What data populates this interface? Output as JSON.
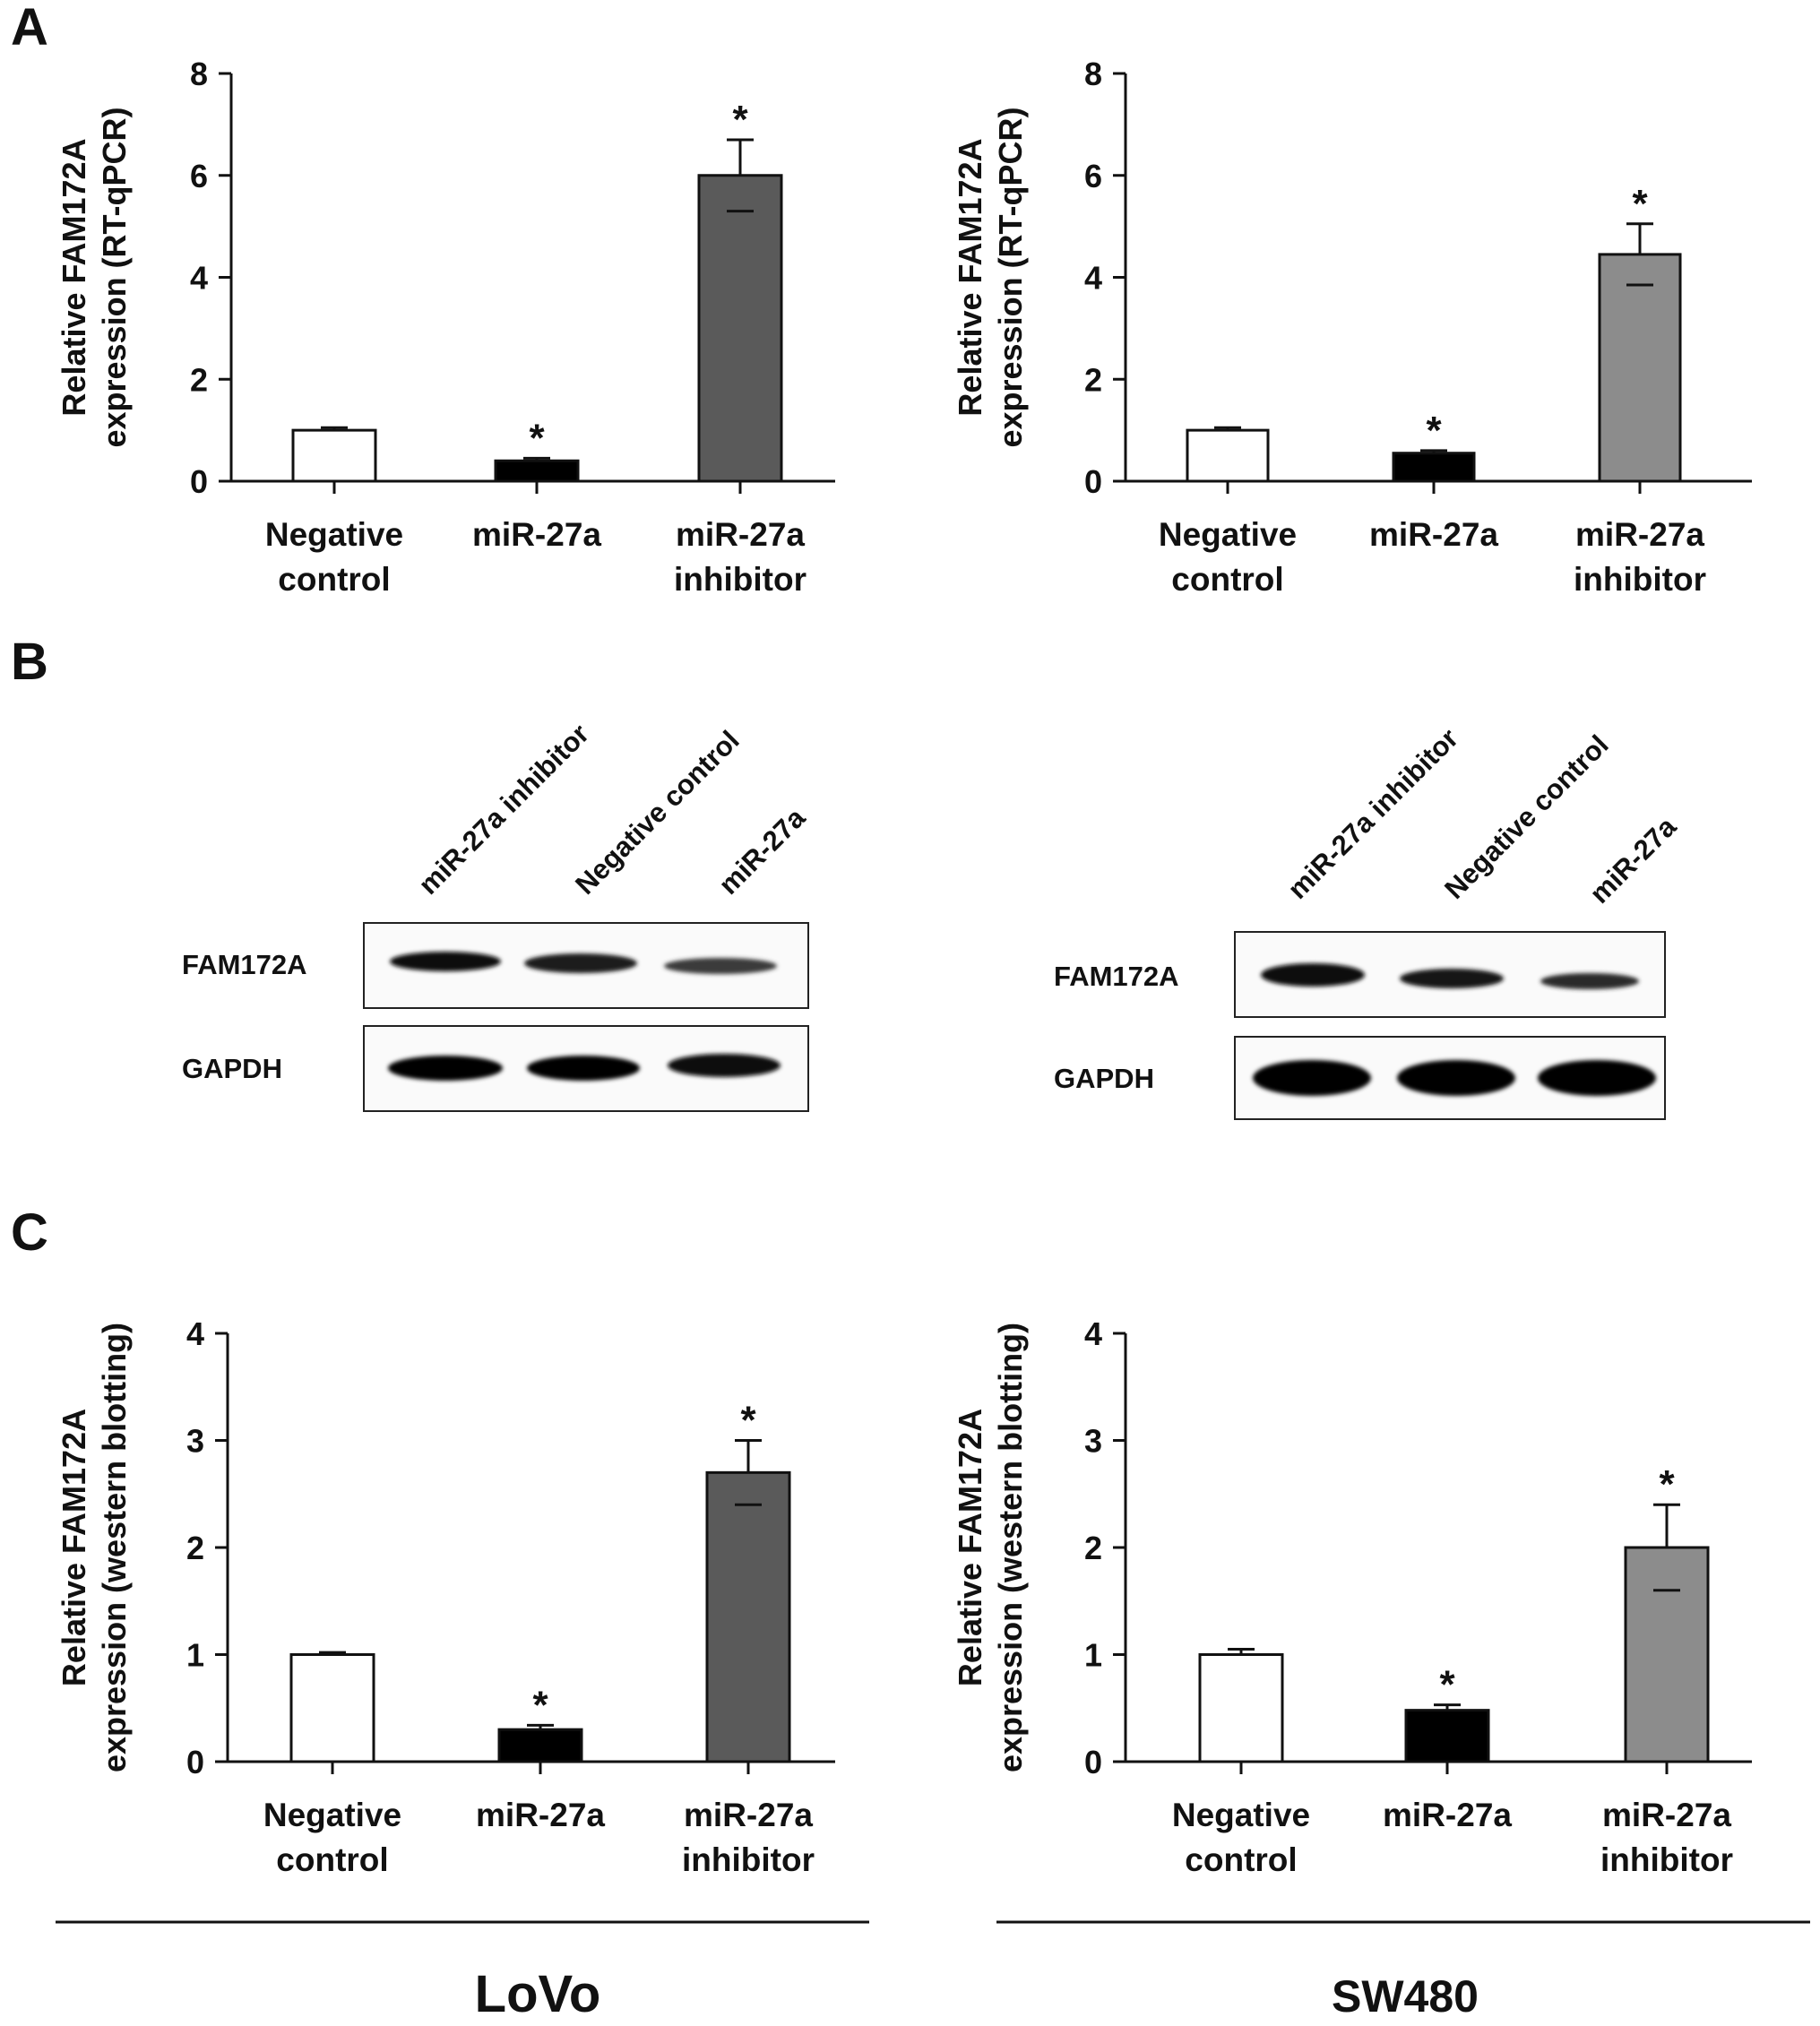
{
  "panels": {
    "a": "A",
    "b": "B",
    "c": "C"
  },
  "bar_colors": [
    "#ffffff",
    "#000000",
    "#5a5a5a",
    "#8c8c8c"
  ],
  "blots": [
    {
      "lanes": [
        "miR-27a inhibitor",
        "Negative control",
        "miR-27a"
      ],
      "rows": [
        "FAM172A",
        "GAPDH"
      ]
    },
    {
      "lanes": [
        "miR-27a inhibitor",
        "Negative control",
        "miR-27a"
      ],
      "rows": [
        "FAM172A",
        "GAPDH"
      ]
    }
  ],
  "cell_lines": {
    "left": "LoVo",
    "right": "SW480"
  },
  "chart_data": [
    {
      "type": "bar",
      "ylabel_line1": "Relative FAM172A",
      "ylabel_line2": "expression (RT-qPCR)",
      "categories": [
        [
          "Negative",
          "control"
        ],
        [
          "miR-27a"
        ],
        [
          "miR-27a",
          "inhibitor"
        ]
      ],
      "values": [
        1.0,
        0.4,
        6.0
      ],
      "errors": [
        0.05,
        0.05,
        0.7
      ],
      "significance": [
        "",
        "*",
        "*"
      ],
      "ylim": [
        0,
        8
      ],
      "yticks": [
        "0",
        "2",
        "4",
        "6",
        "8"
      ],
      "colors": [
        "#ffffff",
        "#000000",
        "#5a5a5a"
      ]
    },
    {
      "type": "bar",
      "ylabel_line1": "Relative FAM172A",
      "ylabel_line2": "expression (RT-qPCR)",
      "categories": [
        [
          "Negative",
          "control"
        ],
        [
          "miR-27a"
        ],
        [
          "miR-27a",
          "inhibitor"
        ]
      ],
      "values": [
        1.0,
        0.55,
        4.45
      ],
      "errors": [
        0.05,
        0.05,
        0.6
      ],
      "significance": [
        "",
        "*",
        "*"
      ],
      "ylim": [
        0,
        8
      ],
      "yticks": [
        "0",
        "2",
        "4",
        "6",
        "8"
      ],
      "colors": [
        "#ffffff",
        "#000000",
        "#8c8c8c"
      ]
    },
    {
      "type": "bar",
      "ylabel_line1": "Relative FAM172A",
      "ylabel_line2": "expression (western blotting)",
      "categories": [
        [
          "Negative",
          "control"
        ],
        [
          "miR-27a"
        ],
        [
          "miR-27a",
          "inhibitor"
        ]
      ],
      "values": [
        1.0,
        0.3,
        2.7
      ],
      "errors": [
        0.02,
        0.04,
        0.3
      ],
      "significance": [
        "",
        "*",
        "*"
      ],
      "ylim": [
        0,
        4
      ],
      "yticks": [
        "0",
        "1",
        "2",
        "3",
        "4"
      ],
      "colors": [
        "#ffffff",
        "#000000",
        "#5a5a5a"
      ]
    },
    {
      "type": "bar",
      "ylabel_line1": "Relative FAM172A",
      "ylabel_line2": "expression (western blotting)",
      "categories": [
        [
          "Negative",
          "control"
        ],
        [
          "miR-27a"
        ],
        [
          "miR-27a",
          "inhibitor"
        ]
      ],
      "values": [
        1.0,
        0.48,
        2.0
      ],
      "errors": [
        0.05,
        0.05,
        0.4
      ],
      "significance": [
        "",
        "*",
        "*"
      ],
      "ylim": [
        0,
        4
      ],
      "yticks": [
        "0",
        "1",
        "2",
        "3",
        "4"
      ],
      "colors": [
        "#ffffff",
        "#000000",
        "#8c8c8c"
      ]
    }
  ]
}
